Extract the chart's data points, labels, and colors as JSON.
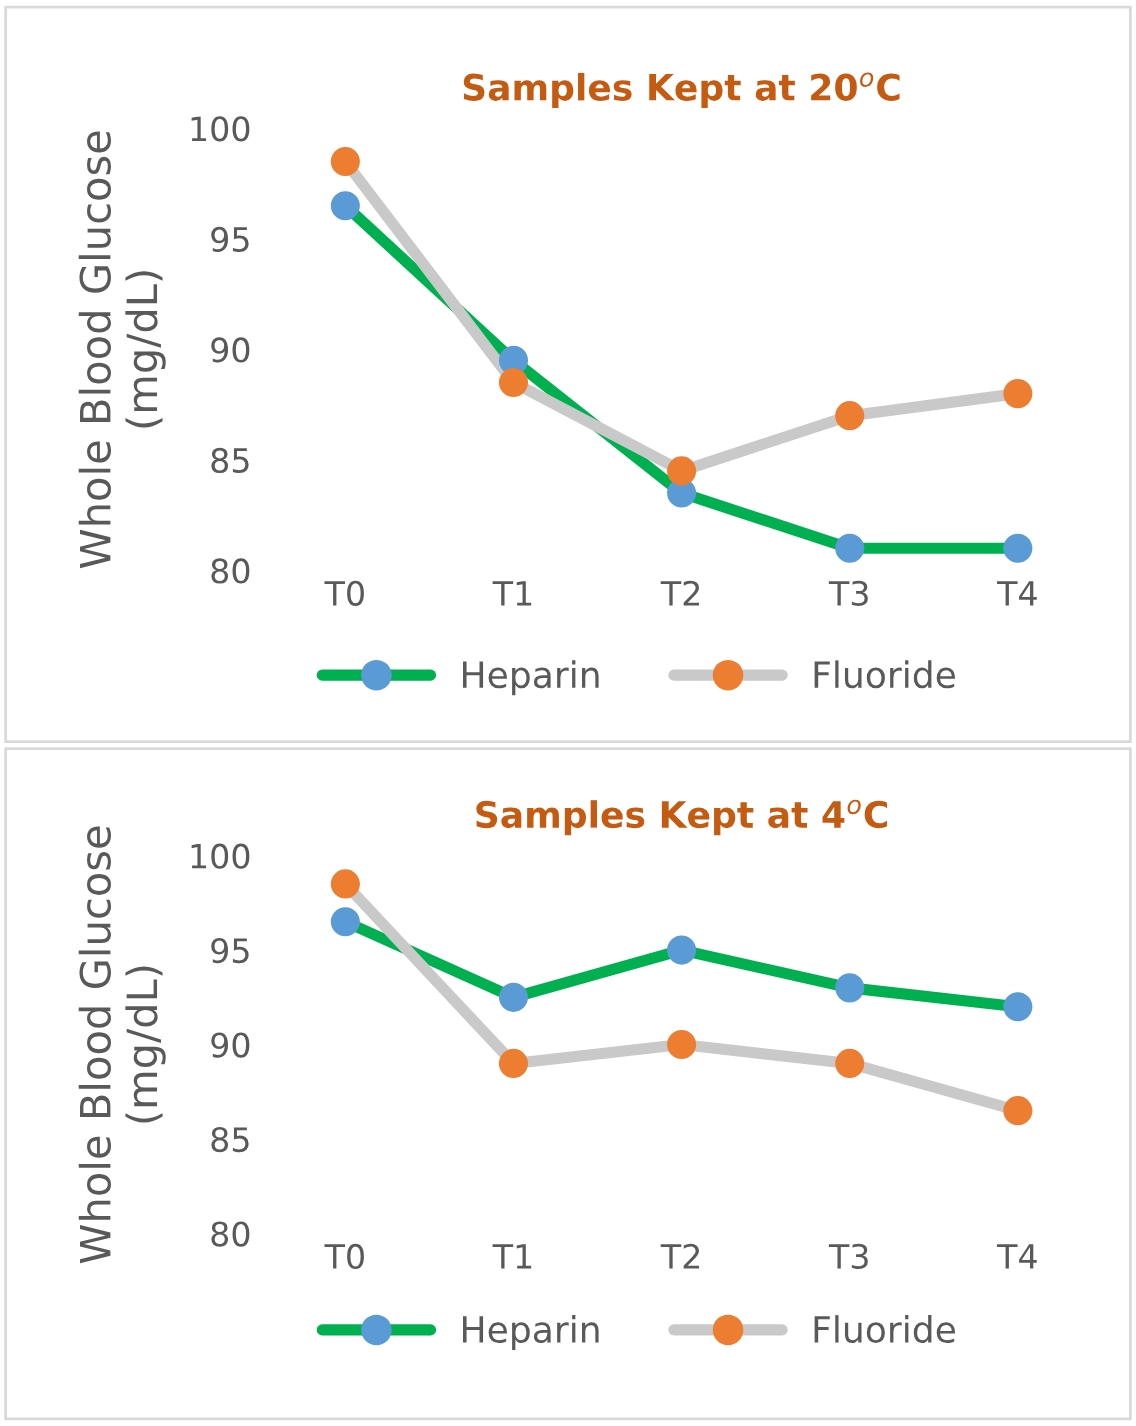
{
  "chart_data": [
    {
      "type": "line",
      "title": "Samples Kept at 20$^{o}$C",
      "ylabel": "Whole Blood Glucose\n(mg/dL)",
      "categories": [
        "T0",
        "T1",
        "T2",
        "T3",
        "T4"
      ],
      "ylim": [
        80,
        100
      ],
      "yticks": [
        80,
        85,
        90,
        95,
        100
      ],
      "legend": "bottom",
      "marker": "circle",
      "grid": false,
      "series": [
        {
          "name": "Heparin",
          "color": "#00b050",
          "colors": [
            "#5b9bd5",
            "#5b9bd5",
            "#5b9bd5",
            "#5b9bd5",
            "#5b9bd5"
          ],
          "values": [
            96.5,
            89.5,
            83.5,
            81,
            81
          ]
        },
        {
          "name": "Fluoride",
          "color": "#c9c9c9",
          "colors": [
            "#ed7d31",
            "#ed7d31",
            "#ed7d31",
            "#ed7d31",
            "#ed7d31"
          ],
          "values": [
            98.5,
            88.5,
            84.5,
            87,
            88
          ]
        }
      ]
    },
    {
      "type": "line",
      "title": "Samples Kept at 4$^{o}$C",
      "ylabel": "Whole Blood Glucose\n(mg/dL)",
      "categories": [
        "T0",
        "T1",
        "T2",
        "T3",
        "T4"
      ],
      "ylim": [
        80,
        100
      ],
      "yticks": [
        80,
        85,
        90,
        95,
        100
      ],
      "legend": "bottom",
      "marker": "circle",
      "grid": false,
      "series": [
        {
          "name": "Heparin",
          "color": "#00b050",
          "colors": [
            "#5b9bd5",
            "#5b9bd5",
            "#5b9bd5",
            "#5b9bd5",
            "#5b9bd5"
          ],
          "values": [
            96.5,
            92.5,
            95,
            93,
            92
          ]
        },
        {
          "name": "Fluoride",
          "color": "#c9c9c9",
          "colors": [
            "#ed7d31",
            "#ed7d31",
            "#ed7d31",
            "#ed7d31",
            "#ed7d31"
          ],
          "values": [
            98.5,
            89,
            90,
            89,
            86.5
          ]
        }
      ]
    }
  ]
}
